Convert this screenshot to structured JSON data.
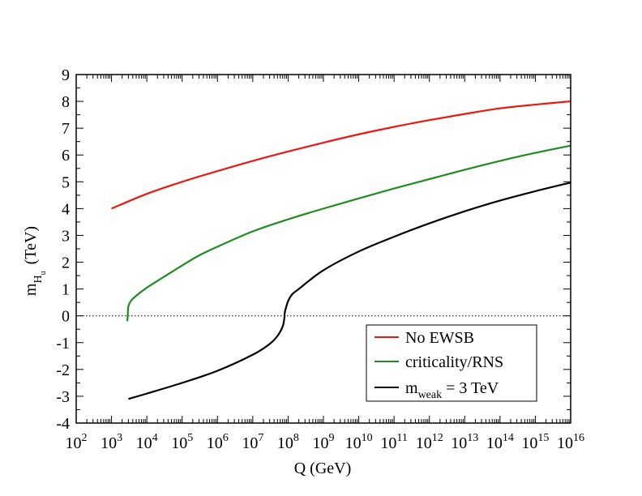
{
  "chart_data": {
    "type": "line",
    "xlabel": "Q (GeV)",
    "ylabel": {
      "main": "m",
      "sub": "H",
      "subsub": "u",
      "unit": "(TeV)"
    },
    "x_scale": "log10",
    "xlim": [
      100,
      1e+16
    ],
    "ylim": [
      -4,
      9
    ],
    "x_tick_exponents": [
      2,
      3,
      4,
      5,
      6,
      7,
      8,
      9,
      10,
      11,
      12,
      13,
      14,
      15,
      16
    ],
    "x_tick_base": "10",
    "y_ticks": [
      "-4",
      "-3",
      "-2",
      "-1",
      "0",
      "1",
      "2",
      "3",
      "4",
      "5",
      "6",
      "7",
      "8",
      "9"
    ],
    "zero_line": "dotted",
    "grid": false,
    "legend_position": "bottom-right",
    "series": [
      {
        "name": "No EWSB",
        "color": "#e8190f",
        "x": [
          1000.0,
          10000.0,
          100000.0,
          1000000.0,
          10000000.0,
          100000000.0,
          1000000000.0,
          10000000000.0,
          100000000000.0,
          1000000000000.0,
          10000000000000.0,
          100000000000000.0,
          1000000000000000.0,
          1e+16
        ],
        "y": [
          4.0,
          4.55,
          5.0,
          5.4,
          5.78,
          6.13,
          6.46,
          6.77,
          7.05,
          7.3,
          7.53,
          7.74,
          7.88,
          8.0
        ]
      },
      {
        "name": "criticality/RNS",
        "color": "#1f8c1f",
        "x": [
          2800,
          2900,
          3000,
          3500,
          5000,
          10000.0,
          30000.0,
          100000.0,
          300000.0,
          1000000.0,
          10000000.0,
          100000000.0,
          1000000000.0,
          10000000000.0,
          100000000000.0,
          1000000000000.0,
          10000000000000.0,
          100000000000000.0,
          1000000000000000.0,
          1e+16
        ],
        "y": [
          -0.2,
          0.1,
          0.35,
          0.55,
          0.75,
          1.05,
          1.45,
          1.88,
          2.25,
          2.58,
          3.15,
          3.6,
          4.0,
          4.38,
          4.75,
          5.1,
          5.45,
          5.78,
          6.08,
          6.35
        ]
      },
      {
        "name": "m_weak = 3 TeV",
        "color": "#000000",
        "x": [
          3000.0,
          10000.0,
          100000.0,
          1000000.0,
          10000000.0,
          30000000.0,
          50000000.0,
          70000000.0,
          78000000.0,
          80000000.0,
          85000000.0,
          100000000.0,
          130000000.0,
          200000000.0,
          1000000000.0,
          10000000000.0,
          100000000000.0,
          1000000000000.0,
          10000000000000.0,
          100000000000000.0,
          1000000000000000.0,
          1e+16
        ],
        "y": [
          -3.1,
          -2.9,
          -2.5,
          -2.05,
          -1.45,
          -1.05,
          -0.75,
          -0.4,
          -0.1,
          0.1,
          0.25,
          0.55,
          0.8,
          1.0,
          1.7,
          2.4,
          2.95,
          3.45,
          3.9,
          4.3,
          4.65,
          4.97
        ]
      }
    ]
  },
  "legend": [
    {
      "label": "No EWSB",
      "color": "#e8190f"
    },
    {
      "label": "criticality/RNS",
      "color": "#1f8c1f"
    },
    {
      "label_main": "m",
      "label_sub": "weak",
      "label_rest": " = 3 TeV",
      "color": "#000000"
    }
  ]
}
